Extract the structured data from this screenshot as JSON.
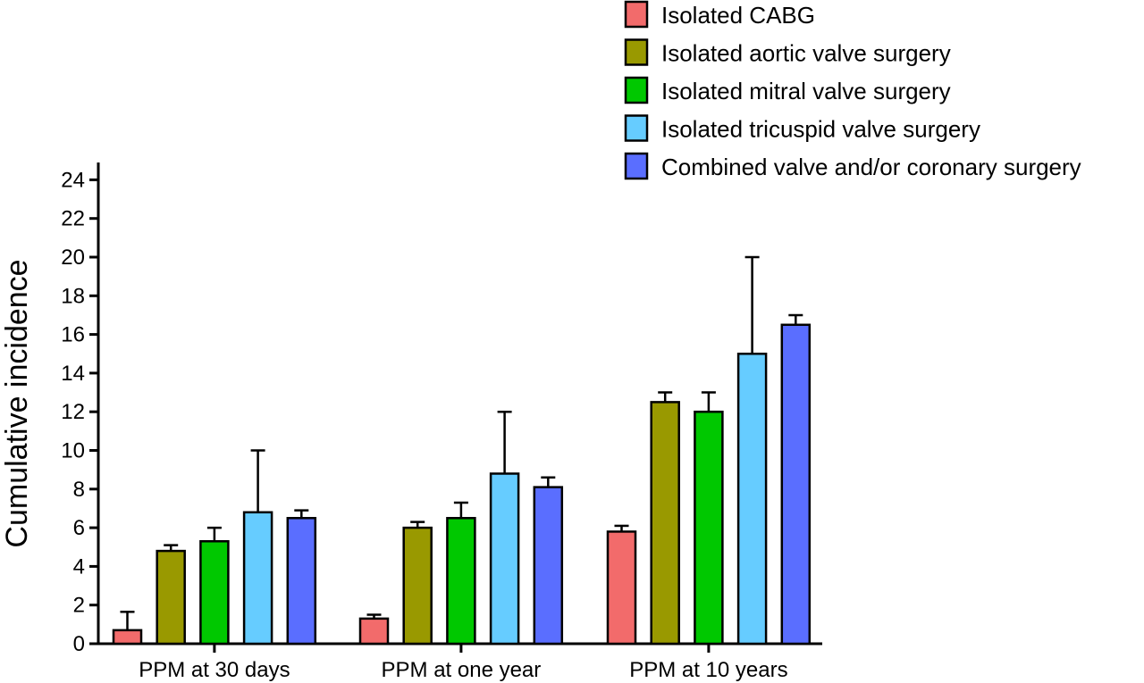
{
  "chart_data": {
    "type": "bar",
    "title": "",
    "xlabel": "",
    "ylabel": "Cumulative incidence",
    "ylim": [
      0,
      24
    ],
    "yticks": [
      0,
      2,
      4,
      6,
      8,
      10,
      12,
      14,
      16,
      18,
      20,
      22,
      24
    ],
    "categories": [
      "PPM at 30 days",
      "PPM at one year",
      "PPM at 10 years"
    ],
    "grid": false,
    "legend_position": "top-right",
    "error_bars": "upper",
    "series": [
      {
        "name": "Isolated CABG",
        "color": "#f26b6b",
        "values": [
          0.7,
          1.3,
          5.8
        ],
        "upper": [
          1.65,
          1.5,
          6.1
        ]
      },
      {
        "name": "Isolated aortic valve surgery",
        "color": "#999900",
        "values": [
          4.8,
          6.0,
          12.5
        ],
        "upper": [
          5.1,
          6.3,
          13.0
        ]
      },
      {
        "name": "Isolated mitral valve surgery",
        "color": "#00c800",
        "values": [
          5.3,
          6.5,
          12.0
        ],
        "upper": [
          6.0,
          7.3,
          13.0
        ]
      },
      {
        "name": "Isolated tricuspid valve surgery",
        "color": "#66ccff",
        "values": [
          6.8,
          8.8,
          15.0
        ],
        "upper": [
          10.0,
          12.0,
          20.0
        ]
      },
      {
        "name": "Combined valve and/or coronary surgery",
        "color": "#5a6eff",
        "values": [
          6.5,
          8.1,
          16.5
        ],
        "upper": [
          6.9,
          8.6,
          17.0
        ]
      }
    ]
  }
}
